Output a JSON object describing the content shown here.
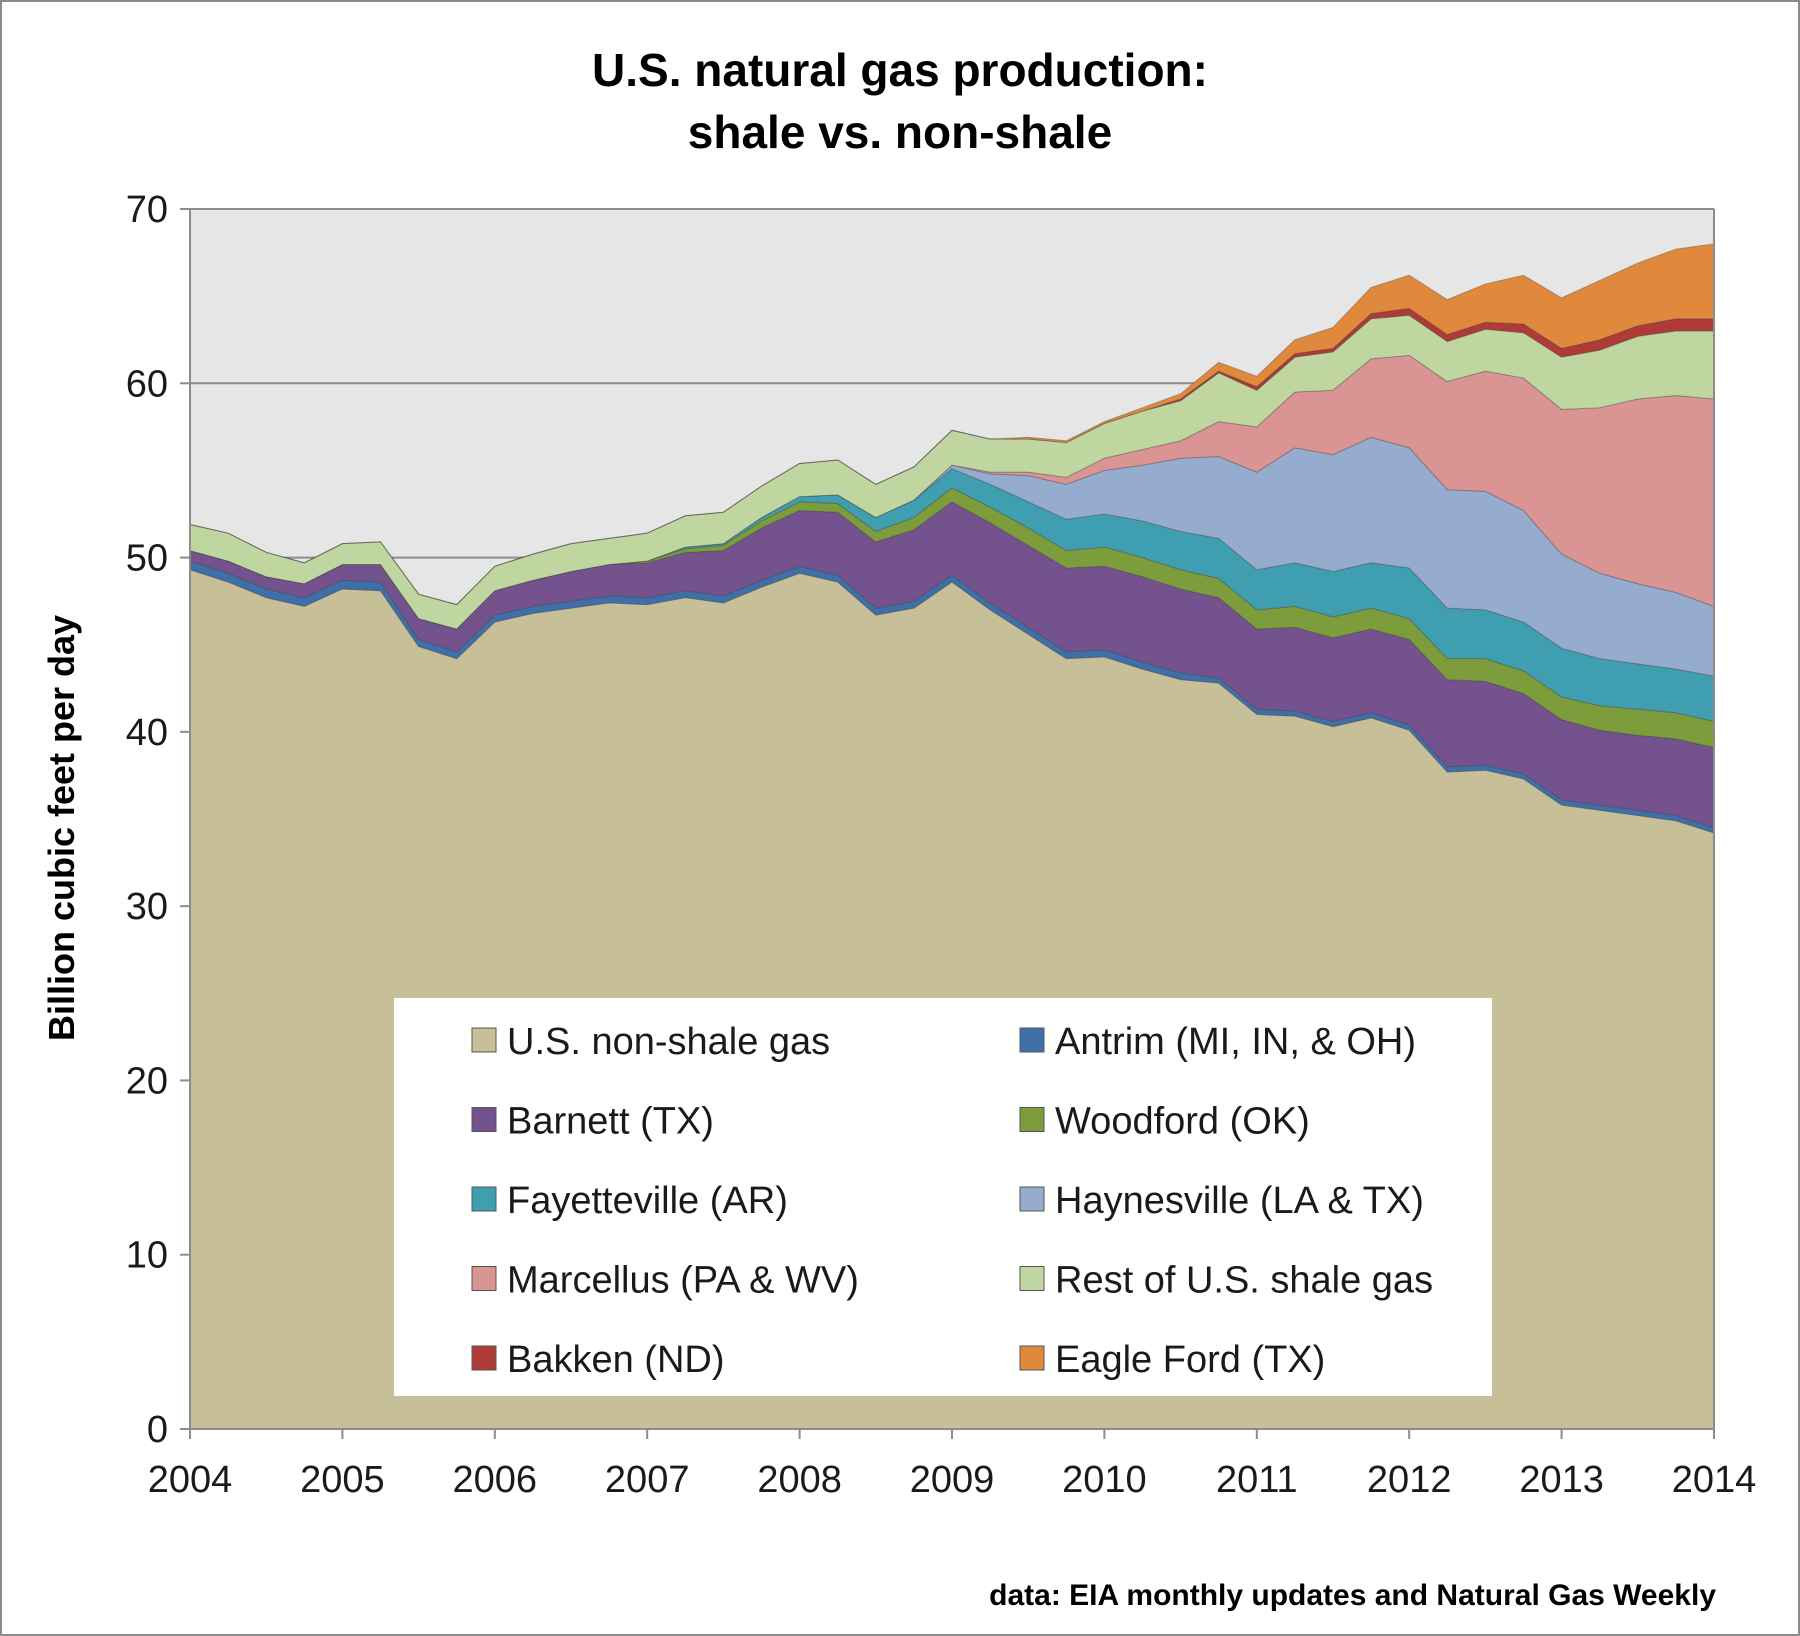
{
  "chart_data": {
    "type": "area",
    "stacked": true,
    "title": [
      "U.S. natural gas production:",
      "shale vs. non-shale"
    ],
    "ylabel": "Billion cubic feet per day",
    "xlabel": "",
    "xlim": [
      2004,
      2014
    ],
    "ylim": [
      0,
      70
    ],
    "x_ticks": [
      "2004",
      "2005",
      "2006",
      "2007",
      "2008",
      "2009",
      "2010",
      "2011",
      "2012",
      "2013",
      "2014"
    ],
    "y_ticks": [
      "0",
      "10",
      "20",
      "30",
      "40",
      "50",
      "60",
      "70"
    ],
    "grid": "horizontal",
    "legend_position": "inside-bottom-center",
    "source": "data: EIA monthly updates and Natural Gas Weekly",
    "x": [
      2004.0,
      2004.25,
      2004.5,
      2004.75,
      2005.0,
      2005.25,
      2005.5,
      2005.75,
      2006.0,
      2006.25,
      2006.5,
      2006.75,
      2007.0,
      2007.25,
      2007.5,
      2007.75,
      2008.0,
      2008.25,
      2008.5,
      2008.75,
      2009.0,
      2009.25,
      2009.5,
      2009.75,
      2010.0,
      2010.25,
      2010.5,
      2010.75,
      2011.0,
      2011.25,
      2011.5,
      2011.75,
      2012.0,
      2012.25,
      2012.5,
      2012.75,
      2013.0,
      2013.25,
      2013.5,
      2013.75,
      2014.0
    ],
    "series": [
      {
        "name": "U.S. non-shale gas",
        "color": "#c6bf98",
        "values": [
          49.3,
          48.6,
          47.7,
          47.2,
          48.2,
          48.1,
          44.9,
          44.2,
          46.3,
          46.8,
          47.1,
          47.4,
          47.3,
          47.7,
          47.4,
          48.3,
          49.1,
          48.6,
          46.7,
          47.1,
          48.6,
          47.0,
          45.6,
          44.2,
          44.3,
          43.6,
          43.0,
          42.8,
          41.0,
          40.9,
          40.3,
          40.8,
          40.1,
          37.7,
          37.8,
          37.3,
          35.8,
          35.5,
          35.2,
          34.9,
          34.2
        ]
      },
      {
        "name": "Antrim (MI, IN, & OH)",
        "color": "#3e6fa8",
        "values": [
          0.5,
          0.5,
          0.5,
          0.5,
          0.5,
          0.5,
          0.4,
          0.4,
          0.4,
          0.4,
          0.4,
          0.4,
          0.4,
          0.4,
          0.4,
          0.4,
          0.4,
          0.4,
          0.4,
          0.4,
          0.4,
          0.4,
          0.4,
          0.4,
          0.4,
          0.4,
          0.4,
          0.3,
          0.3,
          0.3,
          0.3,
          0.3,
          0.3,
          0.3,
          0.3,
          0.3,
          0.3,
          0.3,
          0.3,
          0.3,
          0.3
        ]
      },
      {
        "name": "Barnett (TX)",
        "color": "#74528e",
        "values": [
          0.6,
          0.7,
          0.7,
          0.8,
          0.9,
          1.0,
          1.2,
          1.3,
          1.4,
          1.5,
          1.7,
          1.8,
          2.0,
          2.2,
          2.6,
          3.0,
          3.2,
          3.6,
          3.8,
          4.1,
          4.2,
          4.6,
          4.7,
          4.8,
          4.8,
          4.9,
          4.8,
          4.6,
          4.6,
          4.8,
          4.8,
          4.8,
          4.9,
          5.0,
          4.8,
          4.6,
          4.6,
          4.3,
          4.3,
          4.4,
          4.6
        ]
      },
      {
        "name": "Woodford (OK)",
        "color": "#7d9c3c",
        "values": [
          0.0,
          0.0,
          0.0,
          0.0,
          0.0,
          0.0,
          0.0,
          0.0,
          0.0,
          0.0,
          0.0,
          0.0,
          0.1,
          0.2,
          0.3,
          0.4,
          0.5,
          0.5,
          0.6,
          0.7,
          0.8,
          0.9,
          1.0,
          1.0,
          1.1,
          1.1,
          1.1,
          1.1,
          1.1,
          1.2,
          1.2,
          1.2,
          1.2,
          1.2,
          1.3,
          1.3,
          1.3,
          1.4,
          1.5,
          1.5,
          1.5
        ]
      },
      {
        "name": "Fayetteville (AR)",
        "color": "#3f9fb0",
        "values": [
          0.0,
          0.0,
          0.0,
          0.0,
          0.0,
          0.0,
          0.0,
          0.0,
          0.0,
          0.0,
          0.0,
          0.0,
          0.0,
          0.1,
          0.1,
          0.2,
          0.3,
          0.5,
          0.8,
          1.0,
          1.1,
          1.3,
          1.5,
          1.8,
          1.9,
          2.1,
          2.2,
          2.3,
          2.3,
          2.5,
          2.6,
          2.6,
          2.9,
          2.9,
          2.8,
          2.8,
          2.8,
          2.7,
          2.6,
          2.5,
          2.6
        ]
      },
      {
        "name": "Haynesville (LA & TX)",
        "color": "#96accf",
        "values": [
          0.0,
          0.0,
          0.0,
          0.0,
          0.0,
          0.0,
          0.0,
          0.0,
          0.0,
          0.0,
          0.0,
          0.0,
          0.0,
          0.0,
          0.0,
          0.0,
          0.0,
          0.0,
          0.0,
          0.0,
          0.2,
          0.6,
          1.5,
          2.0,
          2.5,
          3.2,
          4.2,
          4.7,
          5.6,
          6.6,
          6.7,
          7.2,
          6.9,
          6.8,
          6.8,
          6.4,
          5.4,
          4.9,
          4.6,
          4.4,
          4.0
        ]
      },
      {
        "name": "Marcellus (PA & WV)",
        "color": "#d99493",
        "values": [
          0.0,
          0.0,
          0.0,
          0.0,
          0.0,
          0.0,
          0.0,
          0.0,
          0.0,
          0.0,
          0.0,
          0.0,
          0.0,
          0.0,
          0.0,
          0.0,
          0.0,
          0.0,
          0.0,
          0.0,
          0.0,
          0.1,
          0.2,
          0.4,
          0.7,
          0.9,
          1.0,
          2.0,
          2.6,
          3.2,
          3.7,
          4.5,
          5.3,
          6.2,
          6.9,
          7.6,
          8.3,
          9.5,
          10.6,
          11.3,
          11.9
        ]
      },
      {
        "name": "Rest of U.S. shale gas",
        "color": "#c0d6a0",
        "values": [
          1.5,
          1.6,
          1.4,
          1.2,
          1.2,
          1.3,
          1.4,
          1.4,
          1.4,
          1.5,
          1.6,
          1.5,
          1.6,
          1.8,
          1.8,
          1.8,
          1.9,
          2.0,
          1.9,
          1.9,
          2.0,
          1.9,
          1.9,
          2.0,
          2.0,
          2.2,
          2.3,
          2.8,
          2.1,
          2.0,
          2.2,
          2.3,
          2.3,
          2.3,
          2.4,
          2.6,
          3.0,
          3.3,
          3.6,
          3.7,
          3.9
        ]
      },
      {
        "name": "Bakken (ND)",
        "color": "#b03a37",
        "values": [
          0.0,
          0.0,
          0.0,
          0.0,
          0.0,
          0.0,
          0.0,
          0.0,
          0.0,
          0.0,
          0.0,
          0.0,
          0.0,
          0.0,
          0.0,
          0.0,
          0.0,
          0.0,
          0.0,
          0.0,
          0.0,
          0.0,
          0.0,
          0.0,
          0.0,
          0.0,
          0.1,
          0.1,
          0.2,
          0.2,
          0.2,
          0.3,
          0.4,
          0.4,
          0.4,
          0.5,
          0.5,
          0.6,
          0.6,
          0.7,
          0.7
        ]
      },
      {
        "name": "Eagle Ford (TX)",
        "color": "#e0893d",
        "values": [
          0.0,
          0.0,
          0.0,
          0.0,
          0.0,
          0.0,
          0.0,
          0.0,
          0.0,
          0.0,
          0.0,
          0.0,
          0.0,
          0.0,
          0.0,
          0.0,
          0.0,
          0.0,
          0.0,
          0.0,
          0.0,
          0.0,
          0.1,
          0.1,
          0.1,
          0.2,
          0.3,
          0.5,
          0.6,
          0.8,
          1.2,
          1.5,
          1.9,
          2.0,
          2.2,
          2.8,
          2.9,
          3.4,
          3.6,
          4.0,
          4.3
        ]
      }
    ]
  }
}
